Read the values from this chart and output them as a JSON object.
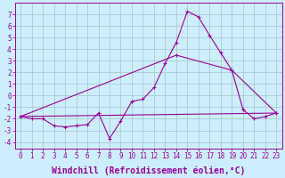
{
  "x_ticks": [
    0,
    1,
    2,
    3,
    4,
    5,
    6,
    7,
    8,
    9,
    10,
    11,
    12,
    13,
    14,
    15,
    16,
    17,
    18,
    19,
    20,
    21,
    22,
    23
  ],
  "xlabel": "Windchill (Refroidissement éolien,°C)",
  "ylabel_ticks": [
    -4,
    -3,
    -2,
    -1,
    0,
    1,
    2,
    3,
    4,
    5,
    6,
    7
  ],
  "ylim": [
    -4.6,
    8.0
  ],
  "xlim": [
    -0.5,
    23.5
  ],
  "background_color": "#cceeff",
  "line_color": "#990099",
  "grid_color": "#aacccc",
  "series1_x": [
    0,
    1,
    2,
    3,
    4,
    5,
    6,
    7,
    8,
    9,
    10,
    11,
    12,
    13,
    14,
    15,
    16,
    17,
    18,
    19,
    20,
    21,
    22,
    23
  ],
  "series1_y": [
    -1.8,
    -2.0,
    -2.0,
    -2.6,
    -2.7,
    -2.6,
    -2.5,
    -1.5,
    -3.7,
    -2.2,
    -0.5,
    -0.3,
    0.7,
    2.8,
    4.6,
    7.3,
    6.8,
    5.2,
    3.7,
    2.2,
    -1.2,
    -2.0,
    -1.8,
    -1.5
  ],
  "series2_x": [
    0,
    14,
    19,
    23
  ],
  "series2_y": [
    -1.8,
    3.5,
    2.2,
    -1.5
  ],
  "series3_x": [
    0,
    23
  ],
  "series3_y": [
    -1.8,
    -1.5
  ],
  "title_fontsize": 7,
  "axis_fontsize": 7,
  "tick_fontsize": 5.5
}
